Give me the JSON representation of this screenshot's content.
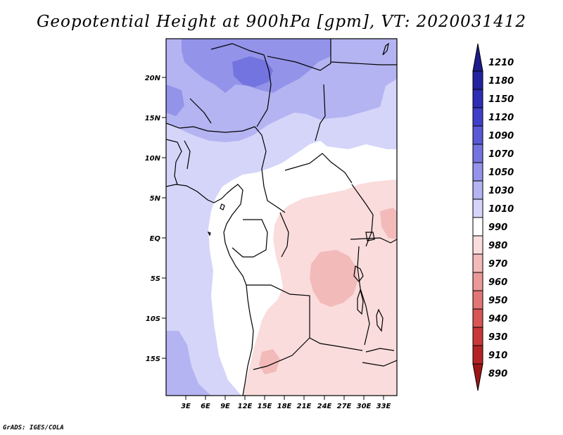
{
  "title": "Geopotential Height at 900hPa [gpm], VT: 2020031412",
  "footer": "GrADS: IGES/COLA",
  "map": {
    "lat_labels": [
      "20N",
      "15N",
      "10N",
      "5N",
      "EQ",
      "5S",
      "10S",
      "15S"
    ],
    "lon_labels": [
      "3E",
      "6E",
      "9E",
      "12E",
      "15E",
      "18E",
      "21E",
      "24E",
      "27E",
      "30E",
      "33E"
    ]
  },
  "colorbar": {
    "levels": [
      "1210",
      "1180",
      "1150",
      "1120",
      "1090",
      "1070",
      "1050",
      "1030",
      "1010",
      "990",
      "980",
      "970",
      "960",
      "950",
      "940",
      "930",
      "910",
      "890"
    ],
    "colors": [
      "#1c1c8c",
      "#23239f",
      "#2d2db5",
      "#3f3fc9",
      "#5959d6",
      "#7474e0",
      "#9393ea",
      "#b4b4f2",
      "#d5d5fa",
      "#ffffff",
      "#fadcdc",
      "#f3baba",
      "#eb9898",
      "#e27676",
      "#d85656",
      "#c93838",
      "#b52424",
      "#9c1616"
    ]
  }
}
